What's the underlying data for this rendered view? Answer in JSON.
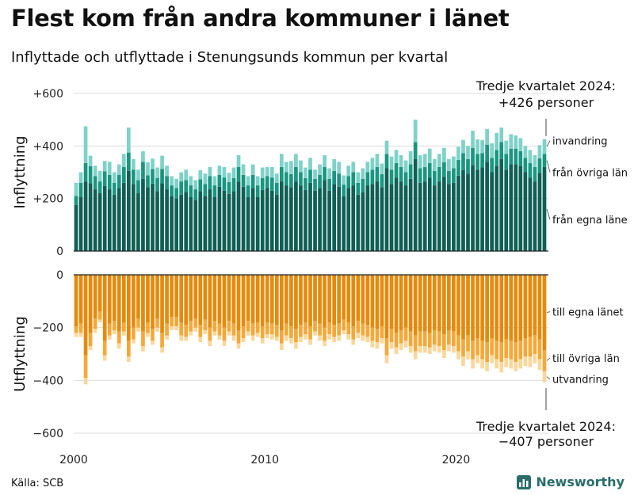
{
  "title": "Flest kom från andra kommuner i länet",
  "subtitle": "Inflyttade och utflyttade i Stenungsunds kommun per kvartal",
  "source": "Källa: SCB",
  "brand": "Newsworthy",
  "colors": {
    "inflyttning": [
      "#0f5f55",
      "#1a9680",
      "#7fd2c8"
    ],
    "utflyttning": [
      "#e68a0c",
      "#f5a838",
      "#fbd79c"
    ],
    "grid": "#dddddd",
    "axis": "#222222"
  },
  "chart_data": [
    {
      "type": "bar",
      "stacked": true,
      "ylabel": "Inflyttning",
      "ylim": [
        0,
        600
      ],
      "yticks": [
        0,
        200,
        400,
        600
      ],
      "ytick_labels": [
        "0",
        "+200",
        "+400",
        "+600"
      ],
      "x_start": "2000 Q1",
      "x_ticks": [
        "2000",
        "2010",
        "2020"
      ],
      "series": [
        {
          "name": "från egna läne",
          "values": [
            175,
            205,
            265,
            258,
            235,
            220,
            248,
            235,
            215,
            240,
            260,
            305,
            255,
            220,
            275,
            243,
            257,
            228,
            258,
            235,
            210,
            200,
            215,
            225,
            205,
            195,
            228,
            210,
            235,
            205,
            245,
            230,
            218,
            228,
            265,
            245,
            205,
            240,
            205,
            233,
            240,
            230,
            215,
            265,
            250,
            243,
            265,
            250,
            233,
            260,
            230,
            240,
            270,
            230,
            255,
            245,
            208,
            240,
            250,
            215,
            225,
            250,
            255,
            265,
            243,
            315,
            255,
            280,
            265,
            250,
            275,
            350,
            260,
            265,
            280,
            250,
            265,
            283,
            255,
            260,
            287,
            308,
            295,
            328,
            310,
            318,
            340,
            300,
            325,
            350,
            310,
            330,
            330,
            325,
            300,
            280,
            265,
            298,
            320
          ]
        },
        {
          "name": "från övriga län",
          "values": [
            35,
            55,
            70,
            65,
            50,
            45,
            55,
            55,
            45,
            50,
            60,
            70,
            55,
            50,
            65,
            45,
            55,
            50,
            55,
            50,
            40,
            40,
            50,
            45,
            45,
            40,
            45,
            45,
            50,
            45,
            45,
            50,
            45,
            50,
            55,
            45,
            45,
            50,
            45,
            45,
            45,
            50,
            45,
            55,
            50,
            50,
            55,
            50,
            45,
            50,
            45,
            50,
            50,
            45,
            50,
            50,
            45,
            45,
            50,
            45,
            50,
            50,
            55,
            55,
            50,
            55,
            55,
            55,
            55,
            50,
            55,
            65,
            55,
            55,
            55,
            55,
            55,
            55,
            50,
            55,
            60,
            65,
            55,
            65,
            60,
            55,
            65,
            55,
            60,
            65,
            60,
            60,
            60,
            55,
            55,
            55,
            55,
            55,
            50
          ]
        },
        {
          "name": "invandring",
          "values": [
            50,
            40,
            140,
            40,
            40,
            40,
            40,
            50,
            40,
            40,
            50,
            95,
            40,
            40,
            40,
            50,
            40,
            40,
            50,
            40,
            35,
            35,
            35,
            40,
            35,
            35,
            35,
            40,
            35,
            35,
            35,
            40,
            35,
            40,
            45,
            40,
            35,
            40,
            35,
            40,
            35,
            40,
            35,
            50,
            40,
            50,
            50,
            45,
            40,
            45,
            35,
            40,
            45,
            40,
            45,
            45,
            35,
            40,
            40,
            40,
            40,
            40,
            45,
            50,
            40,
            50,
            50,
            50,
            45,
            45,
            50,
            85,
            50,
            50,
            55,
            45,
            50,
            55,
            45,
            45,
            50,
            50,
            50,
            65,
            55,
            50,
            60,
            55,
            65,
            55,
            50,
            55,
            50,
            50,
            45,
            50,
            45,
            50,
            56
          ]
        }
      ],
      "annotation": [
        "Tredje kvartalet 2024:",
        "+426 personer"
      ]
    },
    {
      "type": "bar",
      "stacked": true,
      "ylabel": "Utflyttning",
      "ylim": [
        -600,
        0
      ],
      "yticks": [
        0,
        -200,
        -400,
        -600
      ],
      "ytick_labels": [
        "0",
        "−200",
        "−400",
        "−600"
      ],
      "x_start": "2000 Q1",
      "x_ticks": [
        "2000",
        "2010",
        "2020"
      ],
      "series": [
        {
          "name": "till egna länet",
          "values": [
            -195,
            -185,
            -305,
            -220,
            -165,
            -140,
            -250,
            -185,
            -175,
            -215,
            -180,
            -250,
            -200,
            -165,
            -215,
            -180,
            -205,
            -165,
            -220,
            -185,
            -160,
            -160,
            -180,
            -190,
            -175,
            -165,
            -190,
            -170,
            -200,
            -175,
            -185,
            -200,
            -175,
            -185,
            -210,
            -195,
            -175,
            -185,
            -180,
            -195,
            -180,
            -185,
            -190,
            -210,
            -185,
            -195,
            -205,
            -190,
            -180,
            -195,
            -175,
            -185,
            -200,
            -180,
            -190,
            -185,
            -170,
            -180,
            -195,
            -175,
            -185,
            -190,
            -200,
            -205,
            -195,
            -240,
            -205,
            -220,
            -210,
            -200,
            -215,
            -230,
            -215,
            -215,
            -220,
            -210,
            -215,
            -225,
            -210,
            -215,
            -230,
            -245,
            -230,
            -250,
            -240,
            -250,
            -255,
            -240,
            -250,
            -255,
            -245,
            -250,
            -255,
            -250,
            -240,
            -235,
            -230,
            -245,
            -285
          ]
        },
        {
          "name": "till övriga län",
          "values": [
            -25,
            -35,
            -85,
            -50,
            -40,
            -30,
            -55,
            -45,
            -35,
            -45,
            -35,
            -60,
            -45,
            -35,
            -55,
            -40,
            -45,
            -35,
            -55,
            -45,
            -35,
            -35,
            -50,
            -45,
            -40,
            -35,
            -45,
            -40,
            -50,
            -40,
            -45,
            -50,
            -40,
            -45,
            -50,
            -45,
            -40,
            -45,
            -40,
            -45,
            -45,
            -40,
            -45,
            -50,
            -45,
            -45,
            -50,
            -45,
            -45,
            -50,
            -40,
            -45,
            -50,
            -45,
            -45,
            -45,
            -40,
            -45,
            -50,
            -45,
            -45,
            -45,
            -50,
            -50,
            -45,
            -65,
            -50,
            -55,
            -50,
            -50,
            -55,
            -60,
            -55,
            -55,
            -55,
            -55,
            -55,
            -60,
            -55,
            -55,
            -60,
            -65,
            -60,
            -70,
            -65,
            -70,
            -75,
            -65,
            -70,
            -75,
            -70,
            -70,
            -75,
            -70,
            -70,
            -75,
            -70,
            -75,
            -80
          ]
        },
        {
          "name": "utvandring",
          "values": [
            -15,
            -15,
            -25,
            -15,
            -15,
            -10,
            -20,
            -15,
            -15,
            -20,
            -15,
            -20,
            -15,
            -15,
            -20,
            -15,
            -15,
            -15,
            -20,
            -15,
            -15,
            -15,
            -20,
            -15,
            -15,
            -15,
            -20,
            -15,
            -20,
            -15,
            -15,
            -20,
            -15,
            -20,
            -20,
            -15,
            -15,
            -20,
            -15,
            -20,
            -15,
            -20,
            -15,
            -25,
            -20,
            -20,
            -25,
            -20,
            -20,
            -20,
            -15,
            -20,
            -20,
            -20,
            -20,
            -20,
            -15,
            -20,
            -20,
            -20,
            -20,
            -20,
            -25,
            -25,
            -20,
            -30,
            -25,
            -25,
            -25,
            -25,
            -25,
            -30,
            -25,
            -25,
            -25,
            -25,
            -25,
            -30,
            -25,
            -25,
            -30,
            -35,
            -30,
            -35,
            -30,
            -35,
            -35,
            -30,
            -35,
            -40,
            -35,
            -35,
            -35,
            -35,
            -35,
            -40,
            -35,
            -40,
            -42
          ]
        }
      ],
      "annotation": [
        "Tredje kvartalet 2024:",
        "−407 personer"
      ]
    }
  ]
}
